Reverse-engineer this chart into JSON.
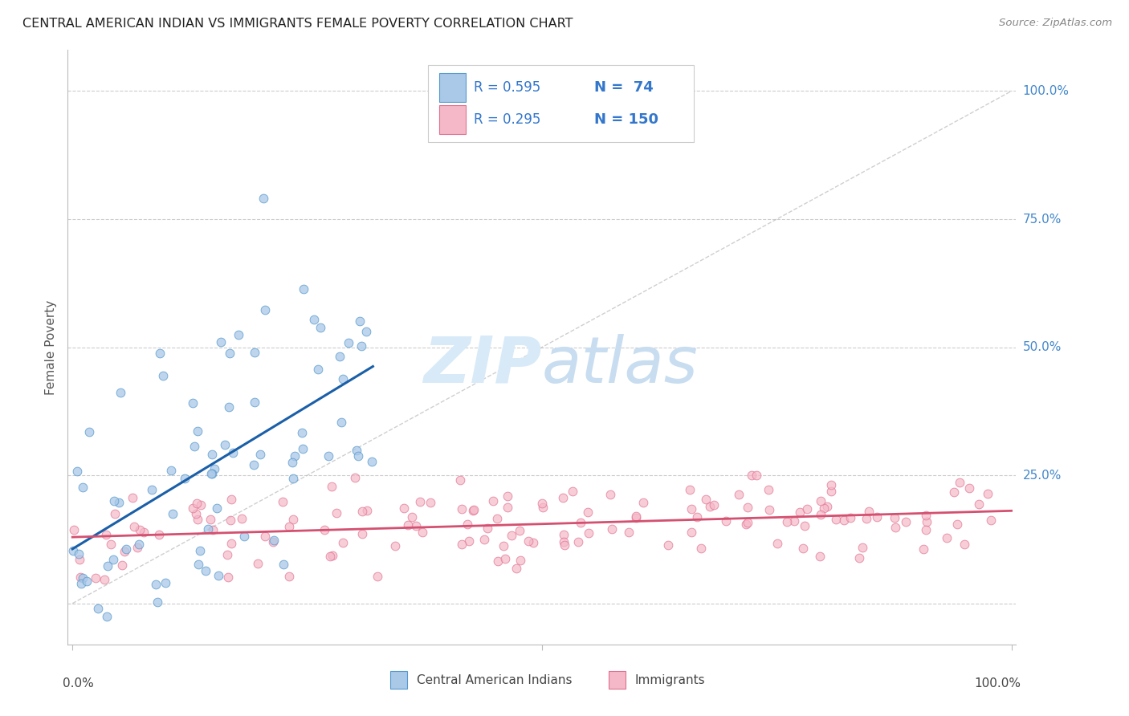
{
  "title": "CENTRAL AMERICAN INDIAN VS IMMIGRANTS FEMALE POVERTY CORRELATION CHART",
  "source": "Source: ZipAtlas.com",
  "ylabel": "Female Poverty",
  "legend1_label": "Central American Indians",
  "legend2_label": "Immigrants",
  "R1": 0.595,
  "N1": 74,
  "R2": 0.295,
  "N2": 150,
  "color_blue_fill": "#aac8e8",
  "color_blue_edge": "#5599cc",
  "color_blue_line": "#1a5fa8",
  "color_pink_fill": "#f5b8c8",
  "color_pink_edge": "#e07090",
  "color_pink_line": "#d45070",
  "color_diag": "#bbbbbb",
  "color_grid": "#cccccc",
  "watermark_color": "#d8eaf8",
  "right_tick_color": "#4488cc",
  "seed1": 12,
  "seed2": 7
}
